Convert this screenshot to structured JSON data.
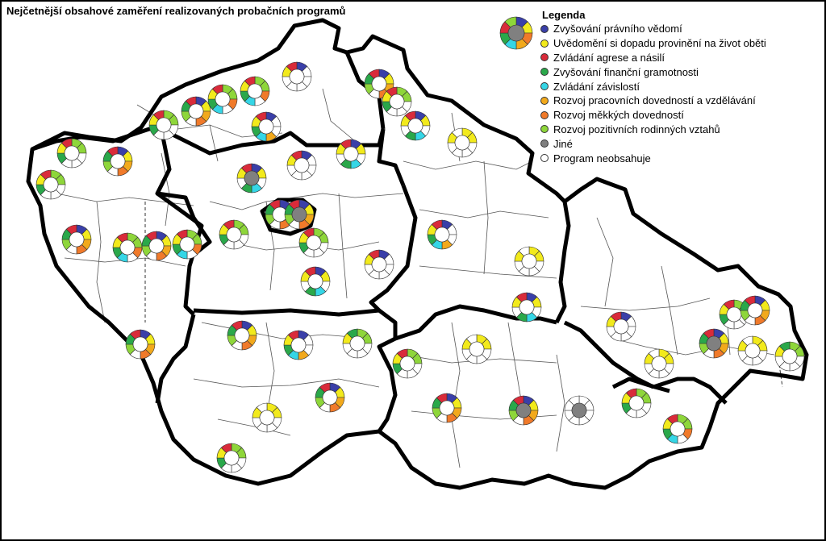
{
  "title": "Nejčetnější obsahové zaměření realizovaných probačních programů",
  "legend": {
    "title": "Legenda",
    "items": [
      {
        "label": "Zvyšování právního vědomí",
        "color": "#3a3fa8"
      },
      {
        "label": "Uvědomění si dopadu provinění na život oběti",
        "color": "#f2ea1c"
      },
      {
        "label": "Zvládání agrese a násilí",
        "color": "#d92b3a"
      },
      {
        "label": "Zvyšování finanční gramotnosti",
        "color": "#2aa84a"
      },
      {
        "label": "Zvládání závislostí",
        "color": "#35d6e6"
      },
      {
        "label": "Rozvoj pracovních dovedností a vzdělávání",
        "color": "#f2a91c"
      },
      {
        "label": "Rozvoj měkkých dovedností",
        "color": "#f07a2a"
      },
      {
        "label": "Rozvoj pozitivních rodinných vztahů",
        "color": "#8ed63a"
      },
      {
        "label": "Jiné",
        "color": "#808080"
      },
      {
        "label": "Program neobsahuje",
        "color": "#ffffff"
      }
    ]
  },
  "map": {
    "outline_color": "#000000",
    "districts_shown": true,
    "symbol_type": "segmented-ring",
    "segments_per_ring": 8
  }
}
